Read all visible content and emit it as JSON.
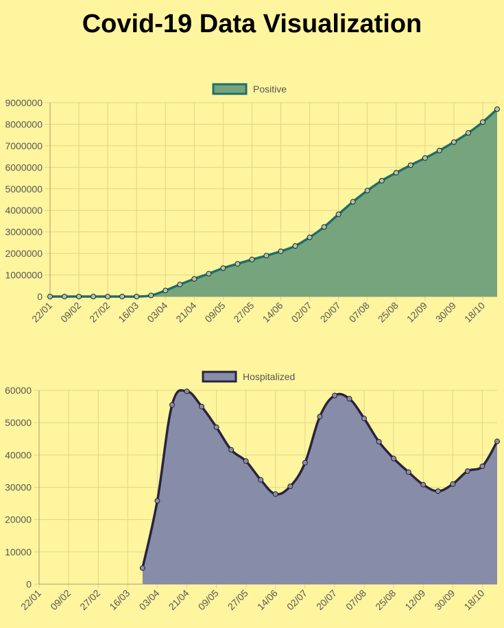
{
  "page": {
    "title": "Covid-19 Data Visualization",
    "background": "#fff59e"
  },
  "chart_data": [
    {
      "type": "area",
      "legend": "Positive",
      "legend_position": "top-center",
      "grid": true,
      "fill_color": "#76a57d",
      "line_color": "#1f6e6a",
      "point_color": "#a9c8b0",
      "ylim": [
        0,
        9000000
      ],
      "y_ticks": [
        0,
        1000000,
        2000000,
        3000000,
        4000000,
        5000000,
        6000000,
        7000000,
        8000000,
        9000000
      ],
      "x_tick_labels": [
        "22/01",
        "09/02",
        "27/02",
        "16/03",
        "03/04",
        "21/04",
        "09/05",
        "27/05",
        "14/06",
        "02/07",
        "20/07",
        "07/08",
        "25/08",
        "12/09",
        "30/09",
        "18/10"
      ],
      "values": [
        0,
        0,
        0,
        0,
        0,
        0,
        0,
        50000,
        280000,
        560000,
        820000,
        1060000,
        1320000,
        1520000,
        1720000,
        1900000,
        2100000,
        2350000,
        2750000,
        3230000,
        3820000,
        4400000,
        4920000,
        5380000,
        5750000,
        6100000,
        6430000,
        6780000,
        7170000,
        7600000,
        8100000,
        8700000
      ]
    },
    {
      "type": "area",
      "legend": "Hospitalized",
      "legend_position": "top-center",
      "grid": true,
      "fill_color": "#878ca8",
      "line_color": "#29233f",
      "point_color": "#8c8cab",
      "ylim": [
        0,
        60000
      ],
      "y_ticks": [
        0,
        10000,
        20000,
        30000,
        40000,
        50000,
        60000
      ],
      "x_tick_labels": [
        "22/01",
        "09/02",
        "27/02",
        "16/03",
        "03/04",
        "21/04",
        "09/05",
        "27/05",
        "14/06",
        "02/07",
        "20/07",
        "07/08",
        "25/08",
        "12/09",
        "30/09",
        "18/10"
      ],
      "values": [
        null,
        null,
        null,
        null,
        null,
        null,
        null,
        5000,
        25800,
        55500,
        59700,
        55000,
        48600,
        41600,
        38100,
        32300,
        27900,
        30300,
        37600,
        51900,
        58400,
        57400,
        51300,
        44100,
        38900,
        34700,
        30800,
        28800,
        31000,
        35000,
        36500,
        44200
      ]
    }
  ]
}
